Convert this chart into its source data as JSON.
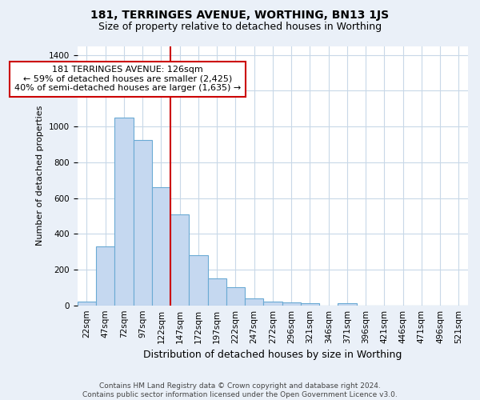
{
  "title": "181, TERRINGES AVENUE, WORTHING, BN13 1JS",
  "subtitle": "Size of property relative to detached houses in Worthing",
  "xlabel": "Distribution of detached houses by size in Worthing",
  "ylabel": "Number of detached properties",
  "categories": [
    "22sqm",
    "47sqm",
    "72sqm",
    "97sqm",
    "122sqm",
    "147sqm",
    "172sqm",
    "197sqm",
    "222sqm",
    "247sqm",
    "272sqm",
    "296sqm",
    "321sqm",
    "346sqm",
    "371sqm",
    "396sqm",
    "421sqm",
    "446sqm",
    "471sqm",
    "496sqm",
    "521sqm"
  ],
  "values": [
    20,
    330,
    1050,
    925,
    660,
    510,
    280,
    150,
    100,
    40,
    20,
    15,
    10,
    0,
    10,
    0,
    0,
    0,
    0,
    0,
    0
  ],
  "bar_color": "#c5d8f0",
  "bar_edge_color": "#6aaad4",
  "vline_x": 4.5,
  "vline_color": "#cc0000",
  "annotation_text": "181 TERRINGES AVENUE: 126sqm\n← 59% of detached houses are smaller (2,425)\n40% of semi-detached houses are larger (1,635) →",
  "annotation_box_color": "#ffffff",
  "annotation_box_edge_color": "#cc0000",
  "ylim": [
    0,
    1450
  ],
  "yticks": [
    0,
    200,
    400,
    600,
    800,
    1000,
    1200,
    1400
  ],
  "footnote": "Contains HM Land Registry data © Crown copyright and database right 2024.\nContains public sector information licensed under the Open Government Licence v3.0.",
  "background_color": "#eaf0f8",
  "plot_background_color": "#ffffff",
  "grid_color": "#c8d8e8",
  "title_fontsize": 10,
  "subtitle_fontsize": 9,
  "xlabel_fontsize": 9,
  "ylabel_fontsize": 8,
  "tick_fontsize": 7.5,
  "annotation_fontsize": 8,
  "footnote_fontsize": 6.5
}
